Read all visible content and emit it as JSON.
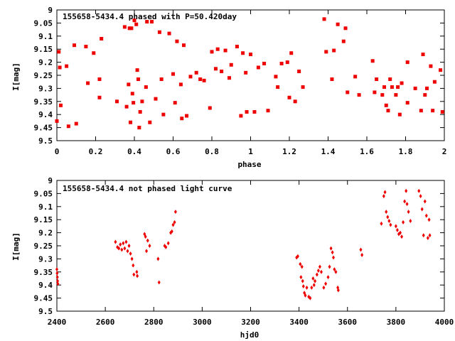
{
  "chart_data": [
    {
      "type": "scatter",
      "title": "155658-5434.4 phased with P=50.420day",
      "xlabel": "phase",
      "ylabel": "I[mag]",
      "xlim": [
        0,
        2
      ],
      "ylim": [
        9,
        9.5
      ],
      "y_inverted": true,
      "grid": false,
      "marker_color": "#ee0000",
      "marker_shape": "square",
      "x_ticks": [
        "0",
        "0.2",
        "0.4",
        "0.6",
        "0.8",
        "1",
        "1.2",
        "1.4",
        "1.6",
        "1.8",
        "2"
      ],
      "y_ticks": [
        "9",
        "9.05",
        "9.1",
        "9.15",
        "9.2",
        "9.25",
        "9.3",
        "9.35",
        "9.4",
        "9.45",
        "9.5"
      ],
      "points": [
        [
          0.0,
          9.425
        ],
        [
          0.01,
          9.16
        ],
        [
          0.015,
          9.22
        ],
        [
          0.02,
          9.365
        ],
        [
          0.05,
          9.215
        ],
        [
          0.06,
          9.445
        ],
        [
          0.09,
          9.135
        ],
        [
          0.1,
          9.435
        ],
        [
          0.15,
          9.14
        ],
        [
          0.16,
          9.28
        ],
        [
          0.19,
          9.165
        ],
        [
          0.22,
          9.265
        ],
        [
          0.22,
          9.335
        ],
        [
          0.23,
          9.11
        ],
        [
          0.31,
          9.35
        ],
        [
          0.35,
          9.065
        ],
        [
          0.36,
          9.37
        ],
        [
          0.37,
          9.285
        ],
        [
          0.375,
          9.07
        ],
        [
          0.38,
          9.43
        ],
        [
          0.385,
          9.07
        ],
        [
          0.39,
          9.32
        ],
        [
          0.395,
          9.355
        ],
        [
          0.4,
          9.04
        ],
        [
          0.41,
          9.055
        ],
        [
          0.415,
          9.23
        ],
        [
          0.42,
          9.265
        ],
        [
          0.425,
          9.45
        ],
        [
          0.43,
          9.39
        ],
        [
          0.44,
          9.35
        ],
        [
          0.46,
          9.295
        ],
        [
          0.465,
          9.045
        ],
        [
          0.48,
          9.43
        ],
        [
          0.49,
          9.045
        ],
        [
          0.51,
          9.34
        ],
        [
          0.53,
          9.085
        ],
        [
          0.54,
          9.265
        ],
        [
          0.55,
          9.4
        ],
        [
          0.58,
          9.09
        ],
        [
          0.6,
          9.245
        ],
        [
          0.61,
          9.355
        ],
        [
          0.62,
          9.12
        ],
        [
          0.64,
          9.285
        ],
        [
          0.645,
          9.415
        ],
        [
          0.655,
          9.135
        ],
        [
          0.67,
          9.405
        ],
        [
          0.69,
          9.255
        ],
        [
          0.72,
          9.24
        ],
        [
          0.74,
          9.265
        ],
        [
          0.76,
          9.27
        ],
        [
          0.79,
          9.375
        ],
        [
          0.8,
          9.16
        ],
        [
          0.82,
          9.225
        ],
        [
          0.83,
          9.15
        ],
        [
          0.85,
          9.235
        ],
        [
          0.87,
          9.155
        ],
        [
          0.89,
          9.26
        ],
        [
          0.9,
          9.21
        ],
        [
          0.93,
          9.14
        ],
        [
          0.95,
          9.405
        ],
        [
          0.96,
          9.165
        ],
        [
          0.975,
          9.24
        ],
        [
          0.98,
          9.39
        ],
        [
          1.0,
          9.17
        ],
        [
          1.02,
          9.39
        ],
        [
          1.04,
          9.22
        ],
        [
          1.07,
          9.205
        ],
        [
          1.09,
          9.385
        ],
        [
          1.13,
          9.255
        ],
        [
          1.14,
          9.295
        ],
        [
          1.16,
          9.205
        ],
        [
          1.19,
          9.2
        ],
        [
          1.2,
          9.335
        ],
        [
          1.21,
          9.165
        ],
        [
          1.23,
          9.35
        ],
        [
          1.25,
          9.235
        ],
        [
          1.27,
          9.295
        ],
        [
          1.38,
          9.035
        ],
        [
          1.39,
          9.16
        ],
        [
          1.42,
          9.265
        ],
        [
          1.43,
          9.155
        ],
        [
          1.45,
          9.055
        ],
        [
          1.48,
          9.12
        ],
        [
          1.49,
          9.07
        ],
        [
          1.5,
          9.315
        ],
        [
          1.54,
          9.255
        ],
        [
          1.56,
          9.325
        ],
        [
          1.63,
          9.195
        ],
        [
          1.64,
          9.315
        ],
        [
          1.65,
          9.265
        ],
        [
          1.68,
          9.325
        ],
        [
          1.69,
          9.295
        ],
        [
          1.7,
          9.365
        ],
        [
          1.71,
          9.385
        ],
        [
          1.72,
          9.265
        ],
        [
          1.73,
          9.295
        ],
        [
          1.75,
          9.325
        ],
        [
          1.76,
          9.295
        ],
        [
          1.77,
          9.4
        ],
        [
          1.78,
          9.28
        ],
        [
          1.81,
          9.2
        ],
        [
          1.81,
          9.355
        ],
        [
          1.85,
          9.3
        ],
        [
          1.88,
          9.385
        ],
        [
          1.89,
          9.17
        ],
        [
          1.9,
          9.325
        ],
        [
          1.91,
          9.3
        ],
        [
          1.93,
          9.215
        ],
        [
          1.94,
          9.385
        ],
        [
          1.95,
          9.275
        ],
        [
          1.98,
          9.23
        ],
        [
          1.99,
          9.39
        ]
      ]
    },
    {
      "type": "scatter",
      "title": "155658-5434.4 not phased light curve",
      "xlabel": "hjd0",
      "ylabel": "I[mag]",
      "xlim": [
        2400,
        4000
      ],
      "ylim": [
        9,
        9.5
      ],
      "y_inverted": true,
      "grid": false,
      "marker_color": "#ee0000",
      "marker_shape": "diamond",
      "x_ticks": [
        "2400",
        "2600",
        "2800",
        "3000",
        "3200",
        "3400",
        "3600",
        "3800",
        "4000"
      ],
      "y_ticks": [
        "9",
        "9.05",
        "9.1",
        "9.15",
        "9.2",
        "9.25",
        "9.3",
        "9.35",
        "9.4",
        "9.45",
        "9.5"
      ],
      "points": [
        [
          2400,
          9.34
        ],
        [
          2401,
          9.355
        ],
        [
          2402,
          9.37
        ],
        [
          2403,
          9.385
        ],
        [
          2404,
          9.395
        ],
        [
          2642,
          9.235
        ],
        [
          2650,
          9.255
        ],
        [
          2656,
          9.26
        ],
        [
          2662,
          9.245
        ],
        [
          2668,
          9.265
        ],
        [
          2674,
          9.24
        ],
        [
          2680,
          9.26
        ],
        [
          2686,
          9.235
        ],
        [
          2692,
          9.27
        ],
        [
          2698,
          9.25
        ],
        [
          2704,
          9.28
        ],
        [
          2710,
          9.3
        ],
        [
          2715,
          9.325
        ],
        [
          2718,
          9.36
        ],
        [
          2730,
          9.35
        ],
        [
          2732,
          9.365
        ],
        [
          2762,
          9.205
        ],
        [
          2766,
          9.215
        ],
        [
          2770,
          9.27
        ],
        [
          2775,
          9.23
        ],
        [
          2783,
          9.25
        ],
        [
          2818,
          9.3
        ],
        [
          2822,
          9.39
        ],
        [
          2845,
          9.25
        ],
        [
          2850,
          9.255
        ],
        [
          2860,
          9.24
        ],
        [
          2870,
          9.2
        ],
        [
          2875,
          9.195
        ],
        [
          2880,
          9.17
        ],
        [
          2886,
          9.16
        ],
        [
          2890,
          9.12
        ],
        [
          3390,
          9.295
        ],
        [
          3395,
          9.29
        ],
        [
          3405,
          9.32
        ],
        [
          3408,
          9.37
        ],
        [
          3412,
          9.33
        ],
        [
          3415,
          9.385
        ],
        [
          3418,
          9.405
        ],
        [
          3422,
          9.43
        ],
        [
          3426,
          9.44
        ],
        [
          3432,
          9.41
        ],
        [
          3440,
          9.445
        ],
        [
          3446,
          9.45
        ],
        [
          3452,
          9.41
        ],
        [
          3458,
          9.375
        ],
        [
          3462,
          9.4
        ],
        [
          3466,
          9.385
        ],
        [
          3474,
          9.36
        ],
        [
          3480,
          9.345
        ],
        [
          3486,
          9.33
        ],
        [
          3492,
          9.35
        ],
        [
          3502,
          9.41
        ],
        [
          3510,
          9.395
        ],
        [
          3520,
          9.37
        ],
        [
          3526,
          9.33
        ],
        [
          3532,
          9.26
        ],
        [
          3538,
          9.275
        ],
        [
          3542,
          9.295
        ],
        [
          3546,
          9.34
        ],
        [
          3552,
          9.35
        ],
        [
          3560,
          9.41
        ],
        [
          3562,
          9.42
        ],
        [
          3655,
          9.265
        ],
        [
          3660,
          9.285
        ],
        [
          3740,
          9.165
        ],
        [
          3750,
          9.06
        ],
        [
          3755,
          9.045
        ],
        [
          3760,
          9.12
        ],
        [
          3766,
          9.14
        ],
        [
          3772,
          9.155
        ],
        [
          3778,
          9.17
        ],
        [
          3800,
          9.175
        ],
        [
          3806,
          9.19
        ],
        [
          3812,
          9.205
        ],
        [
          3818,
          9.2
        ],
        [
          3824,
          9.215
        ],
        [
          3830,
          9.16
        ],
        [
          3836,
          9.08
        ],
        [
          3842,
          9.04
        ],
        [
          3846,
          9.09
        ],
        [
          3852,
          9.12
        ],
        [
          3860,
          9.155
        ],
        [
          3895,
          9.04
        ],
        [
          3902,
          9.06
        ],
        [
          3908,
          9.11
        ],
        [
          3914,
          9.21
        ],
        [
          3920,
          9.08
        ],
        [
          3926,
          9.135
        ],
        [
          3932,
          9.22
        ],
        [
          3937,
          9.15
        ],
        [
          3940,
          9.21
        ]
      ]
    }
  ]
}
